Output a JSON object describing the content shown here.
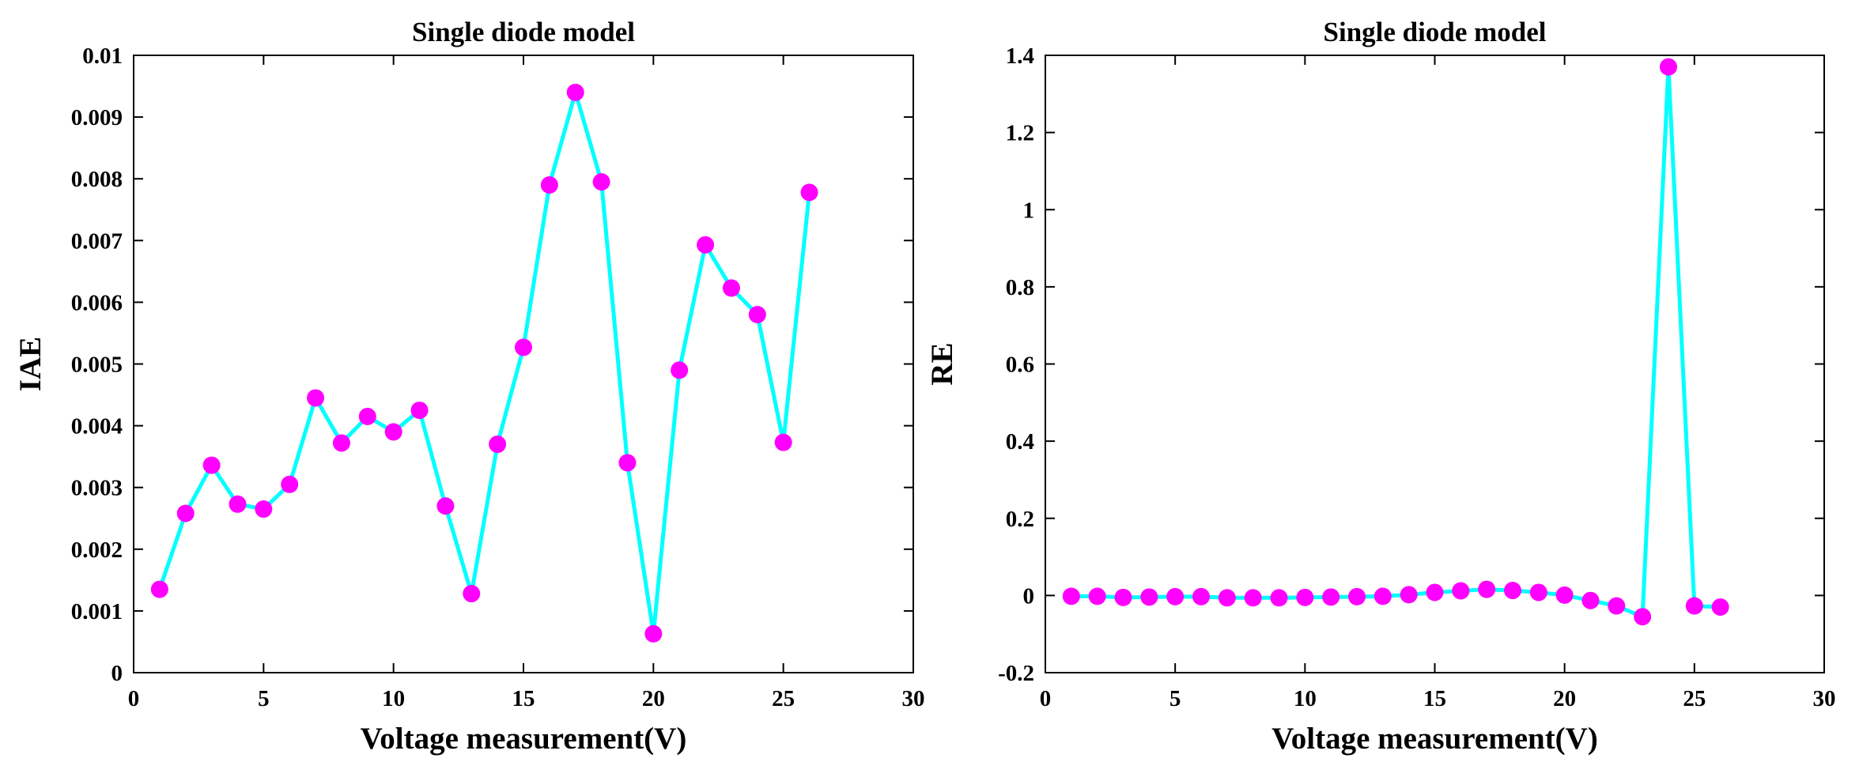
{
  "chart_data": [
    {
      "type": "line",
      "title": "Single diode model",
      "xlabel": "Voltage measurement(V)",
      "ylabel": "IAE",
      "xlim": [
        0,
        30
      ],
      "ylim": [
        0,
        0.01
      ],
      "xticks": [
        "0",
        "5",
        "10",
        "15",
        "20",
        "25",
        "30"
      ],
      "yticks": [
        "0",
        "0.001",
        "0.002",
        "0.003",
        "0.004",
        "0.005",
        "0.006",
        "0.007",
        "0.008",
        "0.009",
        "0.01"
      ],
      "line_color": "#00ffff",
      "marker_color": "#ff00ff",
      "grid": false,
      "x": [
        1,
        2,
        3,
        4,
        5,
        6,
        7,
        8,
        9,
        10,
        11,
        12,
        13,
        14,
        15,
        16,
        17,
        18,
        19,
        20,
        21,
        22,
        23,
        24,
        25,
        26
      ],
      "y": [
        0.00135,
        0.00258,
        0.00336,
        0.00273,
        0.00265,
        0.00305,
        0.00445,
        0.00372,
        0.00415,
        0.0039,
        0.00425,
        0.0027,
        0.00128,
        0.0037,
        0.00527,
        0.0079,
        0.0094,
        0.00795,
        0.0034,
        0.00063,
        0.0049,
        0.00693,
        0.00623,
        0.0058,
        0.00373,
        0.00778
      ]
    },
    {
      "type": "line",
      "title": "Single diode model",
      "xlabel": "Voltage measurement(V)",
      "ylabel": "RE",
      "xlim": [
        0,
        30
      ],
      "ylim": [
        -0.2,
        1.4
      ],
      "xticks": [
        "0",
        "5",
        "10",
        "15",
        "20",
        "25",
        "30"
      ],
      "yticks": [
        "-0.2",
        "0",
        "0.2",
        "0.4",
        "0.6",
        "0.8",
        "1",
        "1.2",
        "1.4"
      ],
      "line_color": "#00ffff",
      "marker_color": "#ff00ff",
      "grid": false,
      "x": [
        1,
        2,
        3,
        4,
        5,
        6,
        7,
        8,
        9,
        10,
        11,
        12,
        13,
        14,
        15,
        16,
        17,
        18,
        19,
        20,
        21,
        22,
        23,
        24,
        25,
        26
      ],
      "y": [
        -0.002,
        -0.002,
        -0.005,
        -0.004,
        -0.003,
        -0.003,
        -0.006,
        -0.006,
        -0.006,
        -0.005,
        -0.004,
        -0.003,
        -0.002,
        0.002,
        0.008,
        0.012,
        0.016,
        0.013,
        0.008,
        0.001,
        -0.013,
        -0.027,
        -0.055,
        1.37,
        -0.027,
        -0.03
      ]
    }
  ]
}
